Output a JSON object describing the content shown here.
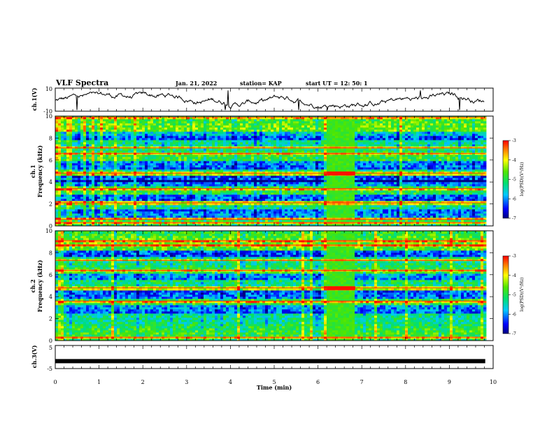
{
  "header": {
    "title": "VLF Spectra",
    "date": "Jan. 21, 2022",
    "station": "station= KAP",
    "start_ut": "start  UT =   12: 50: 1"
  },
  "chart_data": [
    {
      "id": "ch1-waveform",
      "type": "line",
      "ylabel": "ch.1(V)",
      "ylim": [
        -10,
        10
      ],
      "y_ticks": [
        "10",
        "-10"
      ],
      "xlim": [
        0,
        10
      ],
      "series": [
        {
          "color": "#000000"
        }
      ]
    },
    {
      "id": "ch1-spectrogram",
      "type": "heatmap",
      "ylabel": "ch.1\nFrequency (kHz)",
      "ylim": [
        0,
        10
      ],
      "y_ticks": [
        "0",
        "2",
        "4",
        "6",
        "8",
        "10"
      ],
      "xlim": [
        0,
        10
      ],
      "colorbar": {
        "label": "log(PSD)(V²/Hz)",
        "range": [
          -7,
          -3
        ],
        "ticks": [
          "-3",
          "-4",
          "-5",
          "-6",
          "-7"
        ]
      },
      "strong_bands_khz": [
        0.3,
        0.6,
        2.1,
        3.4,
        4.8,
        6.6,
        7.1,
        9.9
      ],
      "quiet_bands_khz": [
        1.2,
        2.6,
        3.9,
        4.3,
        5.5,
        8.2
      ],
      "event_interval_min": [
        6.2,
        6.85
      ]
    },
    {
      "id": "ch2-spectrogram",
      "type": "heatmap",
      "ylabel": "ch.2\nFrequency (kHz)",
      "ylim": [
        0,
        10
      ],
      "y_ticks": [
        "0",
        "2",
        "4",
        "6",
        "8",
        "10"
      ],
      "xlim": [
        0,
        10
      ],
      "colorbar": {
        "label": "log(PSD)(V²/Hz)",
        "range": [
          -7,
          -3
        ],
        "ticks": [
          "-3",
          "-4",
          "-5",
          "-6",
          "-7"
        ]
      },
      "strong_bands_khz": [
        0.3,
        3.6,
        4.8,
        6.4,
        7.3,
        8.7,
        9.1
      ],
      "quiet_bands_khz": [
        2.9,
        4.2,
        5.8,
        7.9
      ],
      "event_interval_min": [
        6.2,
        6.85
      ]
    },
    {
      "id": "ch3-waveform",
      "type": "line",
      "ylabel": "ch.3(V)",
      "ylim": [
        -5,
        5
      ],
      "y_ticks": [
        "5",
        "-5"
      ],
      "xlim": [
        0,
        10
      ],
      "series": [
        {
          "color": "#000000",
          "constant_value": -1.8
        }
      ]
    }
  ],
  "x_axis": {
    "label": "Time (min)",
    "ticks": [
      "0",
      "1",
      "2",
      "3",
      "4",
      "5",
      "6",
      "7",
      "8",
      "9",
      "10"
    ],
    "range": [
      0,
      10
    ]
  }
}
